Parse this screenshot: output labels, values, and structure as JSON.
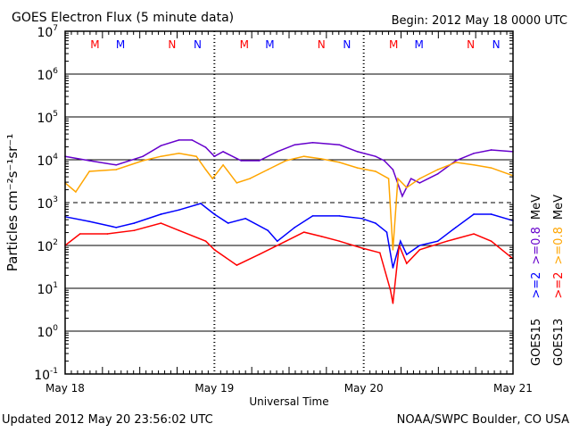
{
  "chart_data": {
    "type": "line",
    "title": "GOES Electron Flux (5 minute data)",
    "begin_label": "Begin: 2012 May 18 0000 UTC",
    "xlabel": "Universal Time",
    "ylabel": "Particles cm⁻²s⁻¹sr⁻¹",
    "yscale": "log",
    "ylim": [
      0.1,
      10000000
    ],
    "xlim_hours": [
      0,
      72
    ],
    "y_ticks": [
      {
        "exp": 7,
        "label": "10",
        "sup": "7"
      },
      {
        "exp": 6,
        "label": "10",
        "sup": "6"
      },
      {
        "exp": 5,
        "label": "10",
        "sup": "5"
      },
      {
        "exp": 4,
        "label": "10",
        "sup": "4"
      },
      {
        "exp": 3,
        "label": "10",
        "sup": "3"
      },
      {
        "exp": 2,
        "label": "10",
        "sup": "2"
      },
      {
        "exp": 1,
        "label": "10",
        "sup": "1"
      },
      {
        "exp": 0,
        "label": "10",
        "sup": "0"
      },
      {
        "exp": -1,
        "label": "10",
        "sup": "-1"
      }
    ],
    "threshold_exp": 3,
    "x_ticks": [
      {
        "hour": 0,
        "label": "May 18"
      },
      {
        "hour": 24,
        "label": "May 19"
      },
      {
        "hour": 48,
        "label": "May 20"
      },
      {
        "hour": 72,
        "label": "May 21"
      }
    ],
    "markers": [
      {
        "hour": 4.8,
        "label": "M",
        "color": "#ff0000"
      },
      {
        "hour": 8.9,
        "label": "M",
        "color": "#0000ff"
      },
      {
        "hour": 17.2,
        "label": "N",
        "color": "#ff0000"
      },
      {
        "hour": 21.3,
        "label": "N",
        "color": "#0000ff"
      },
      {
        "hour": 28.8,
        "label": "M",
        "color": "#ff0000"
      },
      {
        "hour": 32.9,
        "label": "M",
        "color": "#0000ff"
      },
      {
        "hour": 41.2,
        "label": "N",
        "color": "#ff0000"
      },
      {
        "hour": 45.3,
        "label": "N",
        "color": "#0000ff"
      },
      {
        "hour": 52.8,
        "label": "M",
        "color": "#ff0000"
      },
      {
        "hour": 56.9,
        "label": "M",
        "color": "#0000ff"
      },
      {
        "hour": 65.2,
        "label": "N",
        "color": "#ff0000"
      },
      {
        "hour": 69.3,
        "label": "N",
        "color": "#0000ff"
      }
    ],
    "series": [
      {
        "name": "GOES15 >=0.8 MeV",
        "color": "#6600cc",
        "hours": [
          0,
          3.9,
          8.2,
          12.5,
          15.4,
          18.3,
          20.4,
          22.6,
          24.0,
          25.4,
          28.3,
          31.2,
          34.1,
          36.9,
          39.8,
          44.1,
          47.0,
          49.9,
          51.3,
          52.7,
          54.2,
          55.6,
          57.0,
          59.9,
          62.8,
          65.7,
          68.5,
          72
        ],
        "log10_flux": [
          4.08,
          3.98,
          3.88,
          4.08,
          4.33,
          4.46,
          4.46,
          4.29,
          4.08,
          4.19,
          3.98,
          3.98,
          4.19,
          4.35,
          4.4,
          4.35,
          4.19,
          4.08,
          3.98,
          3.77,
          3.15,
          3.56,
          3.46,
          3.67,
          3.98,
          4.15,
          4.23,
          4.19
        ]
      },
      {
        "name": "GOES13 >=0.8 MeV",
        "color": "#ffa500",
        "hours": [
          0,
          1.7,
          3.9,
          8.2,
          12.5,
          15.4,
          18.3,
          21.1,
          22.6,
          23.7,
          25.4,
          27.6,
          29.7,
          32.6,
          35.5,
          38.4,
          41.2,
          44.1,
          47.0,
          49.9,
          52.0,
          52.7,
          53.5,
          54.9,
          57.0,
          59.9,
          62.8,
          65.7,
          68.5,
          72
        ],
        "log10_flux": [
          3.46,
          3.25,
          3.73,
          3.77,
          3.98,
          4.08,
          4.15,
          4.08,
          3.77,
          3.56,
          3.88,
          3.46,
          3.56,
          3.77,
          3.98,
          4.08,
          4.02,
          3.94,
          3.81,
          3.73,
          3.56,
          1.9,
          3.56,
          3.35,
          3.56,
          3.77,
          3.94,
          3.88,
          3.81,
          3.63
        ]
      },
      {
        "name": "GOES15 >=2 MeV",
        "color": "#0000ff",
        "hours": [
          0,
          3.9,
          8.2,
          11.1,
          15.4,
          18.3,
          21.8,
          24.0,
          26.2,
          29.0,
          32.6,
          34.1,
          36.9,
          39.8,
          44.1,
          47.7,
          49.9,
          51.7,
          52.7,
          53.9,
          54.9,
          57.0,
          59.9,
          62.8,
          65.7,
          68.5,
          72
        ],
        "log10_flux": [
          2.67,
          2.56,
          2.42,
          2.52,
          2.73,
          2.83,
          2.98,
          2.73,
          2.52,
          2.63,
          2.35,
          2.1,
          2.42,
          2.69,
          2.69,
          2.63,
          2.52,
          2.31,
          1.48,
          2.1,
          1.79,
          2.0,
          2.1,
          2.42,
          2.73,
          2.73,
          2.58
        ]
      },
      {
        "name": "GOES13 >=2 MeV",
        "color": "#ff0000",
        "hours": [
          0,
          2.4,
          6.8,
          11.1,
          15.4,
          18.3,
          22.6,
          24.0,
          27.6,
          31.2,
          35.5,
          38.4,
          41.2,
          44.1,
          47.7,
          50.6,
          52.3,
          52.7,
          53.7,
          54.9,
          57.0,
          61.4,
          65.7,
          68.5,
          72
        ],
        "log10_flux": [
          2.0,
          2.27,
          2.27,
          2.35,
          2.52,
          2.35,
          2.1,
          1.9,
          1.54,
          1.79,
          2.1,
          2.31,
          2.21,
          2.1,
          1.94,
          1.83,
          0.96,
          0.65,
          2.0,
          1.58,
          1.9,
          2.1,
          2.27,
          2.1,
          1.69
        ]
      }
    ],
    "legend": [
      {
        "column": "GOES15",
        "lines": [
          {
            "text": ">=2",
            "color": "#0000ff"
          },
          {
            "text": ">=0.8",
            "color": "#6600cc"
          },
          {
            "text": "MeV",
            "color": "#000000"
          }
        ]
      },
      {
        "column": "GOES13",
        "lines": [
          {
            "text": ">=2",
            "color": "#ff0000"
          },
          {
            "text": ">=0.8",
            "color": "#ffa500"
          },
          {
            "text": "MeV",
            "color": "#000000"
          }
        ]
      }
    ],
    "legend_placement": "right",
    "grid": true
  },
  "footer": {
    "updated": "Updated 2012 May 20 23:56:02 UTC",
    "source": "NOAA/SWPC Boulder, CO USA"
  }
}
